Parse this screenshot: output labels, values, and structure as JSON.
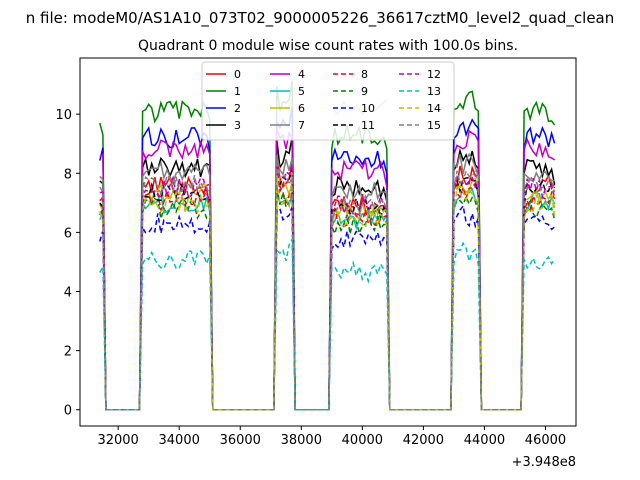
{
  "figure": {
    "suptitle": "n file: modeM0/AS1A10_073T02_9000005226_36617cztM0_level2_quad_clean",
    "title": "Quadrant 0 module wise count rates with 100.0s bins.",
    "offset_label": "+3.948e8"
  },
  "chart_data": {
    "type": "line",
    "title": "Quadrant 0 module wise count rates with 100.0s bins.",
    "xlabel": "",
    "ylabel": "",
    "x_offset": 394800000,
    "xlim": [
      30750,
      47000
    ],
    "ylim": [
      -0.55,
      11.9
    ],
    "xticks": [
      32000,
      34000,
      36000,
      38000,
      40000,
      42000,
      44000,
      46000
    ],
    "xtick_labels": [
      "32000",
      "34000",
      "36000",
      "38000",
      "40000",
      "42000",
      "44000",
      "46000"
    ],
    "yticks": [
      0,
      2,
      4,
      6,
      8,
      10
    ],
    "ytick_labels": [
      "0",
      "2",
      "4",
      "6",
      "8",
      "10"
    ],
    "grid": false,
    "legend": {
      "placement": "top-center",
      "columns": 4
    },
    "segments": [
      {
        "start": 31400,
        "end": 31500,
        "kind": "on"
      },
      {
        "start": 31600,
        "end": 32700,
        "kind": "off"
      },
      {
        "start": 32800,
        "end": 35000,
        "kind": "on"
      },
      {
        "start": 35100,
        "end": 37100,
        "kind": "off"
      },
      {
        "start": 37200,
        "end": 37700,
        "kind": "on"
      },
      {
        "start": 37800,
        "end": 38900,
        "kind": "off"
      },
      {
        "start": 39000,
        "end": 40800,
        "kind": "on"
      },
      {
        "start": 40900,
        "end": 42900,
        "kind": "off"
      },
      {
        "start": 43000,
        "end": 43800,
        "kind": "on"
      },
      {
        "start": 43900,
        "end": 45200,
        "kind": "off"
      },
      {
        "start": 45300,
        "end": 46300,
        "kind": "on"
      }
    ],
    "series": [
      {
        "name": "0",
        "color": "#ff0000",
        "dash": "solid",
        "level": 7.6
      },
      {
        "name": "1",
        "color": "#008000",
        "dash": "solid",
        "level": 10.1
      },
      {
        "name": "2",
        "color": "#0000ff",
        "dash": "solid",
        "level": 9.2
      },
      {
        "name": "3",
        "color": "#000000",
        "dash": "solid",
        "level": 8.2
      },
      {
        "name": "4",
        "color": "#bf00bf",
        "dash": "solid",
        "level": 8.8
      },
      {
        "name": "5",
        "color": "#00bfbf",
        "dash": "solid",
        "level": 7.0
      },
      {
        "name": "6",
        "color": "#bfbf00",
        "dash": "solid",
        "level": 7.3
      },
      {
        "name": "7",
        "color": "#808080",
        "dash": "solid",
        "level": 8.0
      },
      {
        "name": "8",
        "color": "#ff0000",
        "dash": "dashed",
        "level": 7.1
      },
      {
        "name": "9",
        "color": "#008000",
        "dash": "dashed",
        "level": 6.8
      },
      {
        "name": "10",
        "color": "#0000ff",
        "dash": "dashed",
        "level": 6.3
      },
      {
        "name": "11",
        "color": "#000000",
        "dash": "dashed",
        "level": 7.4
      },
      {
        "name": "12",
        "color": "#bf00bf",
        "dash": "dashed",
        "level": 7.5
      },
      {
        "name": "13",
        "color": "#00bfbf",
        "dash": "dashed",
        "level": 5.1
      },
      {
        "name": "14",
        "color": "#bfbf00",
        "dash": "dashed",
        "level": 7.0
      },
      {
        "name": "15",
        "color": "#808080",
        "dash": "dashed",
        "level": 7.6
      }
    ],
    "extra_series": [
      {
        "color": "#7fbf7f",
        "dash": "solid",
        "values_x": [
          39000,
          39200,
          39400,
          39600,
          39800,
          40000,
          40200,
          40400,
          40600,
          40800
        ],
        "values_y": [
          10.2,
          10.0,
          10.4,
          10.1,
          10.3,
          10.0,
          10.2,
          10.1,
          10.3,
          10.5
        ]
      }
    ]
  }
}
